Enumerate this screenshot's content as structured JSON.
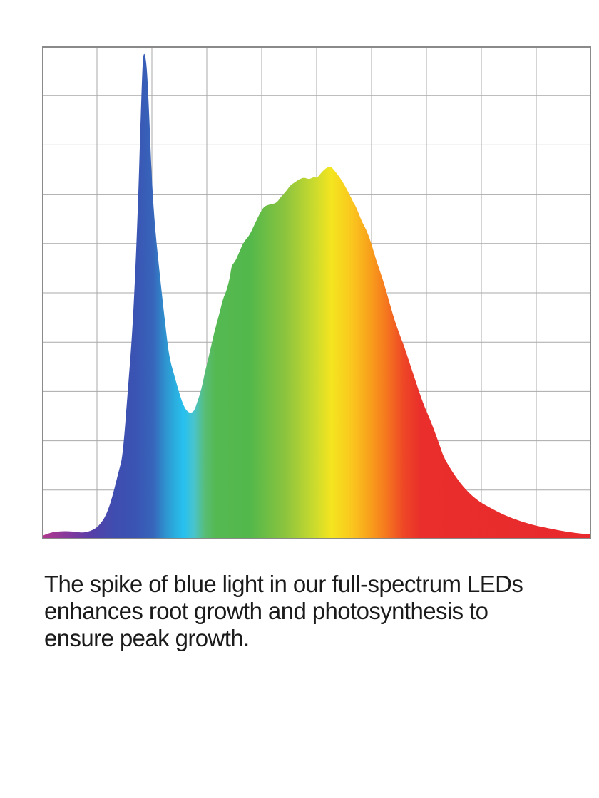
{
  "caption": {
    "lines": [
      "The spike of blue light in our full-spectrum LEDs",
      "enhances root growth and photosynthesis to",
      "ensure peak growth."
    ],
    "text_color": "#1b1b1b"
  },
  "chart_data": {
    "type": "area",
    "title": "",
    "xlabel": "",
    "ylabel": "",
    "x_tick_labels": [],
    "y_tick_labels": [],
    "legend": null,
    "description": "Full-spectrum LED relative spectral power distribution; sharp blue spike near 0.19 of x-axis reaching 0.99 of full scale, valley at 0.27, broad green-yellow hump peaking 0.76 at 0.53, red tail decaying to 0.01 at right edge",
    "axis_ranges": {
      "x_norm": [
        0,
        1
      ],
      "y_norm": [
        0,
        1
      ]
    },
    "grid": {
      "columns": 10,
      "rows": 10,
      "line_color": "#a9a9a9",
      "border_color": "#8a8a8a"
    },
    "spectrum_gradient_stops": [
      [
        0.0,
        "#b23a8e"
      ],
      [
        0.053,
        "#7f3a9e"
      ],
      [
        0.092,
        "#5440a8"
      ],
      [
        0.131,
        "#3f4db0"
      ],
      [
        0.17,
        "#3a54b3"
      ],
      [
        0.203,
        "#3766bb"
      ],
      [
        0.222,
        "#2f8ecd"
      ],
      [
        0.242,
        "#2aaede"
      ],
      [
        0.258,
        "#27c0ef"
      ],
      [
        0.277,
        "#49c4cc"
      ],
      [
        0.297,
        "#58bd74"
      ],
      [
        0.316,
        "#55b952"
      ],
      [
        0.378,
        "#52b84b"
      ],
      [
        0.443,
        "#8cc43e"
      ],
      [
        0.495,
        "#c9da2e"
      ],
      [
        0.527,
        "#f4e51f"
      ],
      [
        0.566,
        "#fac51e"
      ],
      [
        0.6,
        "#f89c1b"
      ],
      [
        0.632,
        "#f4701f"
      ],
      [
        0.658,
        "#ee4726"
      ],
      [
        0.69,
        "#e92e2b"
      ],
      [
        1.0,
        "#e8292d"
      ]
    ],
    "curve_points_norm": [
      [
        0.0,
        0.007
      ],
      [
        0.014,
        0.014
      ],
      [
        0.036,
        0.017
      ],
      [
        0.06,
        0.016
      ],
      [
        0.075,
        0.013
      ],
      [
        0.096,
        0.02
      ],
      [
        0.109,
        0.035
      ],
      [
        0.118,
        0.053
      ],
      [
        0.127,
        0.082
      ],
      [
        0.14,
        0.14
      ],
      [
        0.147,
        0.169
      ],
      [
        0.157,
        0.314
      ],
      [
        0.164,
        0.415
      ],
      [
        0.17,
        0.545
      ],
      [
        0.175,
        0.689
      ],
      [
        0.179,
        0.834
      ],
      [
        0.182,
        0.935
      ],
      [
        0.184,
        0.981
      ],
      [
        0.187,
        0.987
      ],
      [
        0.191,
        0.957
      ],
      [
        0.195,
        0.863
      ],
      [
        0.2,
        0.725
      ],
      [
        0.206,
        0.627
      ],
      [
        0.216,
        0.52
      ],
      [
        0.225,
        0.429
      ],
      [
        0.232,
        0.367
      ],
      [
        0.242,
        0.328
      ],
      [
        0.251,
        0.292
      ],
      [
        0.258,
        0.27
      ],
      [
        0.264,
        0.26
      ],
      [
        0.27,
        0.256
      ],
      [
        0.277,
        0.26
      ],
      [
        0.283,
        0.28
      ],
      [
        0.29,
        0.303
      ],
      [
        0.297,
        0.342
      ],
      [
        0.306,
        0.382
      ],
      [
        0.313,
        0.418
      ],
      [
        0.322,
        0.454
      ],
      [
        0.33,
        0.49
      ],
      [
        0.335,
        0.501
      ],
      [
        0.342,
        0.53
      ],
      [
        0.345,
        0.555
      ],
      [
        0.352,
        0.564
      ],
      [
        0.36,
        0.585
      ],
      [
        0.367,
        0.603
      ],
      [
        0.378,
        0.617
      ],
      [
        0.387,
        0.639
      ],
      [
        0.396,
        0.66
      ],
      [
        0.404,
        0.675
      ],
      [
        0.414,
        0.679
      ],
      [
        0.427,
        0.682
      ],
      [
        0.435,
        0.695
      ],
      [
        0.443,
        0.704
      ],
      [
        0.452,
        0.718
      ],
      [
        0.46,
        0.724
      ],
      [
        0.469,
        0.731
      ],
      [
        0.478,
        0.734
      ],
      [
        0.486,
        0.73
      ],
      [
        0.495,
        0.735
      ],
      [
        0.501,
        0.733
      ],
      [
        0.508,
        0.743
      ],
      [
        0.514,
        0.75
      ],
      [
        0.519,
        0.754
      ],
      [
        0.526,
        0.756
      ],
      [
        0.531,
        0.75
      ],
      [
        0.538,
        0.74
      ],
      [
        0.544,
        0.731
      ],
      [
        0.551,
        0.718
      ],
      [
        0.556,
        0.708
      ],
      [
        0.562,
        0.695
      ],
      [
        0.567,
        0.683
      ],
      [
        0.571,
        0.676
      ],
      [
        0.577,
        0.66
      ],
      [
        0.583,
        0.643
      ],
      [
        0.59,
        0.629
      ],
      [
        0.599,
        0.603
      ],
      [
        0.609,
        0.564
      ],
      [
        0.621,
        0.526
      ],
      [
        0.631,
        0.487
      ],
      [
        0.642,
        0.444
      ],
      [
        0.653,
        0.41
      ],
      [
        0.66,
        0.39
      ],
      [
        0.677,
        0.332
      ],
      [
        0.694,
        0.275
      ],
      [
        0.709,
        0.237
      ],
      [
        0.725,
        0.188
      ],
      [
        0.732,
        0.165
      ],
      [
        0.751,
        0.13
      ],
      [
        0.771,
        0.101
      ],
      [
        0.794,
        0.078
      ],
      [
        0.816,
        0.064
      ],
      [
        0.842,
        0.049
      ],
      [
        0.875,
        0.035
      ],
      [
        0.91,
        0.025
      ],
      [
        0.962,
        0.014
      ],
      [
        1.0,
        0.01
      ]
    ]
  }
}
